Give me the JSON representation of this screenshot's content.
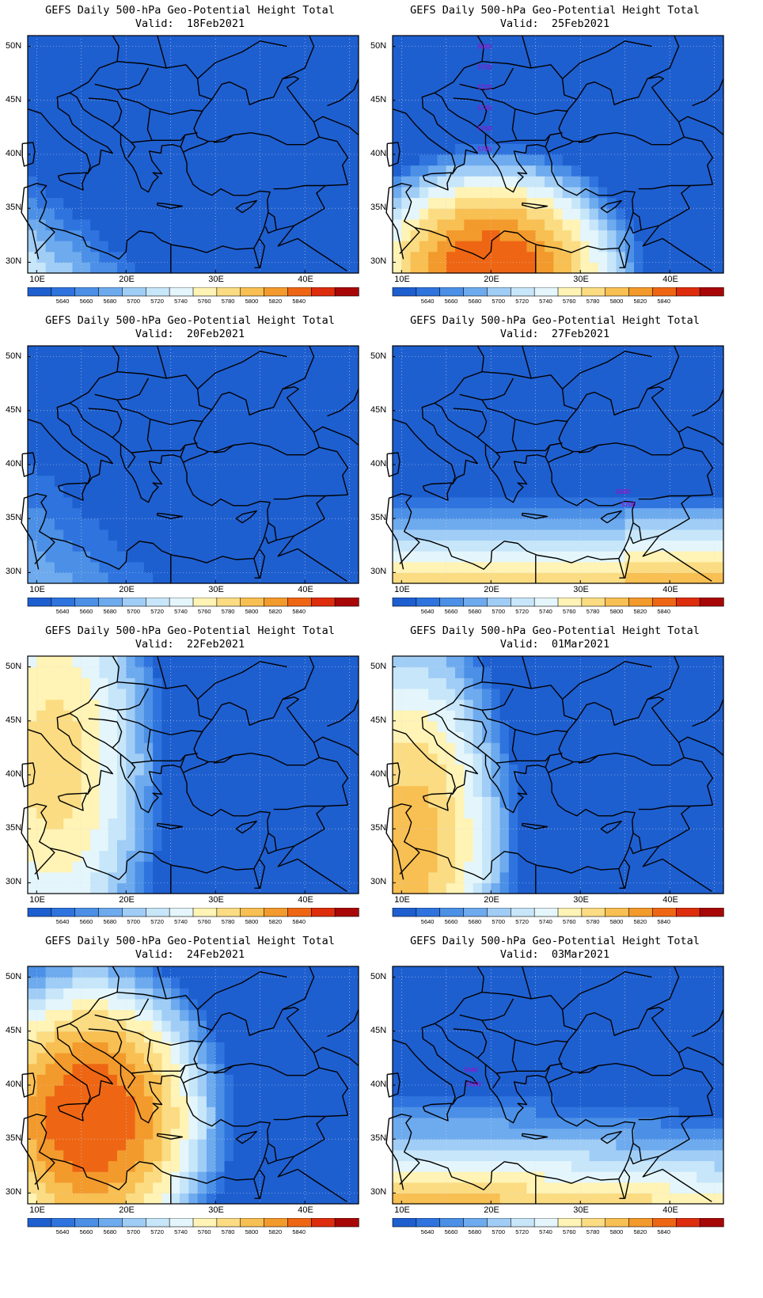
{
  "title_line1": "GEFS Daily 500-hPa Geo-Potential Height Total",
  "valid_prefix": "Valid:",
  "lat_labels": [
    "50N",
    "45N",
    "40N",
    "35N",
    "30N"
  ],
  "lon_labels": [
    "10E",
    "20E",
    "30E",
    "40E"
  ],
  "colorbar": {
    "colors": [
      "#1e5fd0",
      "#2f74de",
      "#4b90e6",
      "#6eaaee",
      "#a0cdf6",
      "#c7e6f9",
      "#e4f6fb",
      "#fff3b5",
      "#fbdc82",
      "#f8bf52",
      "#f39a2c",
      "#ee6614",
      "#dd2d0d",
      "#a80707"
    ],
    "labels": [
      "5640",
      "5660",
      "5680",
      "5700",
      "5720",
      "5740",
      "5760",
      "5780",
      "5800",
      "5820",
      "5840"
    ]
  },
  "panels": [
    {
      "date": "18Feb2021",
      "contour_labels": []
    },
    {
      "date": "25Feb2021",
      "contour_labels": [
        "5680",
        "5700",
        "5720",
        "5740",
        "5760",
        "5780"
      ]
    },
    {
      "date": "20Feb2021",
      "contour_labels": []
    },
    {
      "date": "27Feb2021",
      "contour_labels": [
        "5680",
        "5700"
      ]
    },
    {
      "date": "22Feb2021",
      "contour_labels": []
    },
    {
      "date": "01Mar2021",
      "contour_labels": []
    },
    {
      "date": "24Feb2021",
      "contour_labels": []
    },
    {
      "date": "03Mar2021",
      "contour_labels": [
        "5640",
        "5660"
      ]
    }
  ]
}
